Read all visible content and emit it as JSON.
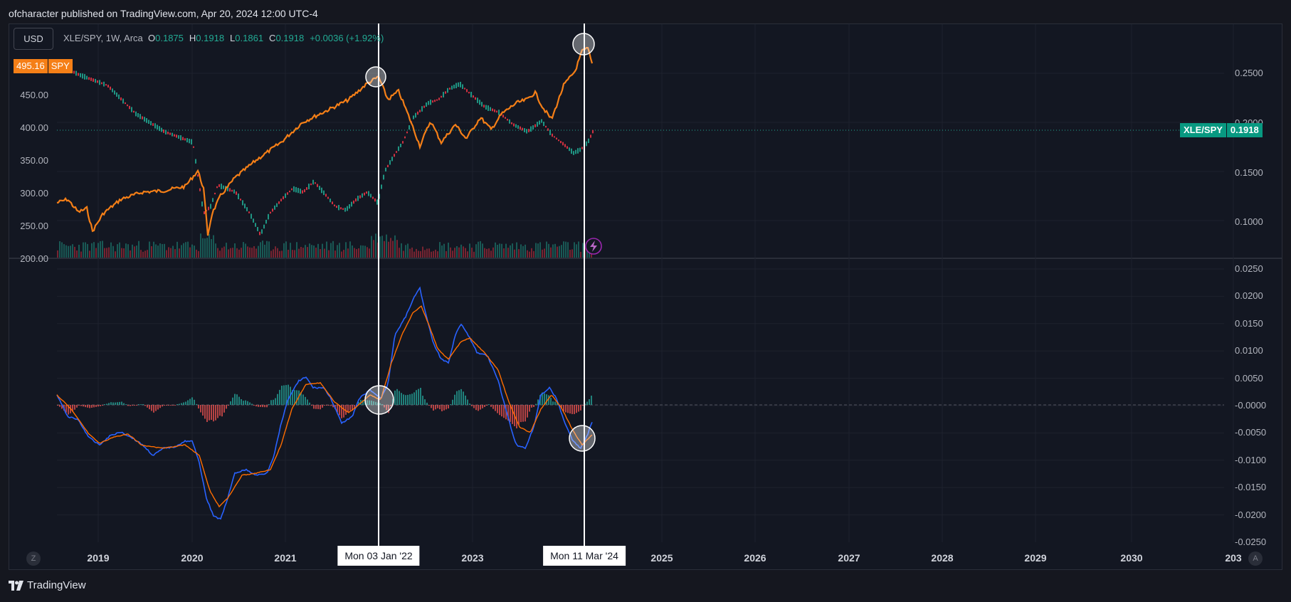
{
  "header": {
    "published_text": "ofcharacter published on TradingView.com, Apr 20, 2024 12:00 UTC-4"
  },
  "toolbar": {
    "currency_button": "USD"
  },
  "legend": {
    "symbol": "XLE/SPY, 1W, Arca",
    "open_label": "O",
    "open": "0.1875",
    "high_label": "H",
    "high": "0.1918",
    "low_label": "L",
    "low": "0.1861",
    "close_label": "C",
    "close": "0.1918",
    "change": "+0.0036 (+1.92%)"
  },
  "left_scale": {
    "spy_price": "495.16",
    "spy_name": "SPY",
    "ticks": [
      "450.00",
      "400.00",
      "350.00",
      "300.00",
      "250.00",
      "200.00"
    ]
  },
  "right_scale": {
    "price_ticks": [
      "0.2500",
      "0.2000",
      "0.1500",
      "0.1000"
    ],
    "last_symbol": "XLE/SPY",
    "last_value": "0.1918",
    "macd_ticks": [
      "0.0250",
      "0.0200",
      "0.0150",
      "0.0100",
      "0.0050",
      "-0.0000",
      "-0.0050",
      "-0.0100",
      "-0.0150",
      "-0.0200",
      "-0.0250"
    ]
  },
  "time_axis": {
    "years": [
      "2019",
      "2020",
      "2021",
      "2023",
      "2025",
      "2026",
      "2027",
      "2028",
      "2029",
      "2030",
      "203"
    ],
    "crosshair_1": "Mon 03 Jan '22",
    "crosshair_2": "Mon 11 Mar '24"
  },
  "corner": {
    "left": "Z",
    "right": "A"
  },
  "footer": {
    "brand": "TradingView"
  },
  "colors": {
    "background": "#131722",
    "up": "#22ab94",
    "down": "#f23645",
    "spy_line": "#f57f17",
    "macd_line": "#2962ff",
    "signal_line": "#ff6d00",
    "highlight": "#ffffff"
  },
  "icons": {
    "alert": "lightning-icon",
    "brand": "tradingview-logo-icon"
  }
}
